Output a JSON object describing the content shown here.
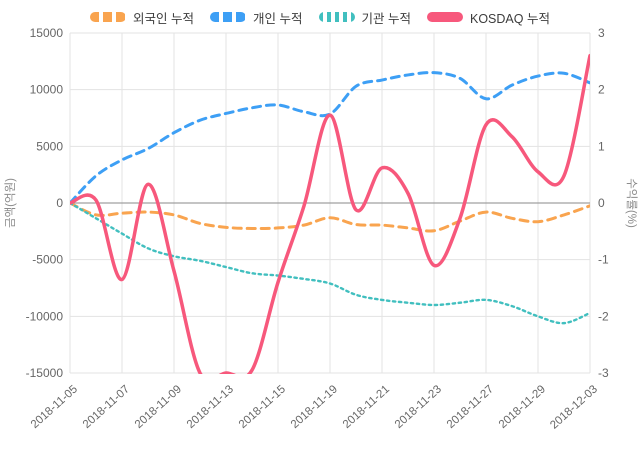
{
  "chart_data": {
    "type": "line",
    "categories": [
      "2018-11-05",
      "2018-11-06",
      "2018-11-07",
      "2018-11-08",
      "2018-11-09",
      "2018-11-12",
      "2018-11-13",
      "2018-11-14",
      "2018-11-15",
      "2018-11-16",
      "2018-11-19",
      "2018-11-20",
      "2018-11-21",
      "2018-11-22",
      "2018-11-23",
      "2018-11-26",
      "2018-11-27",
      "2018-11-28",
      "2018-11-29",
      "2018-11-30",
      "2018-12-03"
    ],
    "x_tick_labels": [
      "2018-11-05",
      "2018-11-07",
      "2018-11-09",
      "2018-11-13",
      "2018-11-15",
      "2018-11-19",
      "2018-11-21",
      "2018-11-23",
      "2018-11-27",
      "2018-11-29",
      "2018-12-03"
    ],
    "series": [
      {
        "name": "외국인 누적",
        "axis": "left",
        "style": "dashed",
        "color": "#F9A44F",
        "values": [
          0,
          -1050,
          -900,
          -800,
          -1050,
          -1800,
          -2150,
          -2250,
          -2200,
          -1950,
          -1300,
          -1900,
          -1950,
          -2200,
          -2450,
          -1600,
          -800,
          -1350,
          -1650,
          -1050,
          -250
        ]
      },
      {
        "name": "개인 누적",
        "axis": "left",
        "style": "dashed",
        "color": "#3D9FF5",
        "values": [
          0,
          2400,
          3800,
          4800,
          6200,
          7300,
          7900,
          8400,
          8650,
          8050,
          7850,
          10300,
          10850,
          11300,
          11500,
          11000,
          9200,
          10400,
          11200,
          11450,
          10600
        ]
      },
      {
        "name": "기관 누적",
        "axis": "left",
        "style": "dotted",
        "color": "#41BFBF",
        "values": [
          0,
          -1350,
          -2700,
          -4000,
          -4700,
          -5100,
          -5650,
          -6200,
          -6400,
          -6700,
          -7100,
          -8100,
          -8550,
          -8800,
          -9000,
          -8800,
          -8550,
          -9100,
          -10000,
          -10600,
          -9700
        ]
      },
      {
        "name": "KOSDAQ 누적",
        "axis": "right",
        "style": "solid",
        "color": "#F7587C",
        "values": [
          0,
          0.05,
          -1.35,
          0.33,
          -1.2,
          -3.0,
          -3.0,
          -2.95,
          -1.4,
          -0.05,
          1.55,
          -0.12,
          0.62,
          0.17,
          -1.1,
          -0.27,
          1.38,
          1.17,
          0.55,
          0.48,
          2.6
        ]
      }
    ],
    "left_axis": {
      "label": "금액(억원)",
      "min": -15000,
      "max": 15000,
      "step": 5000,
      "tick_labels": [
        "15000",
        "10000",
        "5000",
        "0",
        "-5000",
        "-10000",
        "-15000"
      ]
    },
    "right_axis": {
      "label": "수익률(%)",
      "min": -3,
      "max": 3,
      "step": 1,
      "tick_labels": [
        "3",
        "2",
        "1",
        "0",
        "-1",
        "-2",
        "-3"
      ]
    },
    "grid": true,
    "legend_position": "top",
    "title": ""
  },
  "colors": {
    "grid": "#E3E3E3",
    "zero_line": "#8A8A8A",
    "tick_text": "#666666",
    "axis_title_text": "#8C8C8C"
  }
}
